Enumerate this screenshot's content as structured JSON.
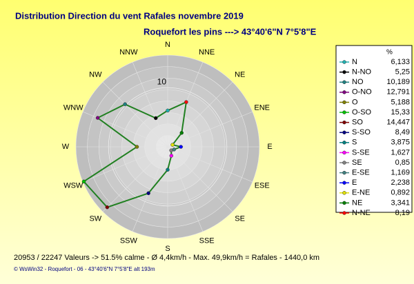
{
  "chart_data": {
    "type": "radar",
    "title": "Distribution Direction du vent Rafales  novembre 2019",
    "subtitle": "Roquefort les pins    --->  43°40'6\"N 7°5'8\"E",
    "categories": [
      "N",
      "NNE",
      "NE",
      "ENE",
      "E",
      "ESE",
      "SE",
      "SSE",
      "S",
      "SSW",
      "SW",
      "WSW",
      "W",
      "WNW",
      "NW",
      "NNW"
    ],
    "legend_title": "%",
    "legend_names": [
      "N",
      "N-NO",
      "NO",
      "O-NO",
      "O",
      "O-SO",
      "SO",
      "S-SO",
      "S",
      "S-SE",
      "SE",
      "E-SE",
      "E",
      "E-NE",
      "NE",
      "N-NE"
    ],
    "values": [
      6.133,
      5.25,
      10.189,
      12.791,
      5.188,
      15.33,
      14.447,
      8.49,
      3.875,
      1.627,
      0.85,
      1.169,
      2.238,
      0.892,
      3.341,
      8.19
    ],
    "value_labels": [
      "6,133",
      "5,25",
      "10,189",
      "12,791",
      "5,188",
      "15,33",
      "14,447",
      "8,49",
      "3,875",
      "1,627",
      "0,85",
      "1,169",
      "2,238",
      "0,892",
      "3,341",
      "8,19"
    ],
    "colors": [
      "#20b0b0",
      "#000000",
      "#208080",
      "#800080",
      "#808000",
      "#00c000",
      "#800000",
      "#000080",
      "#008080",
      "#ff00ff",
      "#808080",
      "#408080",
      "#0000ff",
      "#e0e000",
      "#008000",
      "#ff0000"
    ],
    "line_color": "#208020",
    "rlim": [
      0,
      15.5
    ],
    "rticks": [
      10
    ],
    "footer": "20953 / 22247 Valeurs  -> 51.5% calme   -   Ø 4,4km/h   -   Max. 49,9km/h = Rafales    -    1440,0 km",
    "credit": "© WsWin32  -  Roquefort - 06  -  43°40'6\"N 7°5'8\"E alt 193m"
  }
}
